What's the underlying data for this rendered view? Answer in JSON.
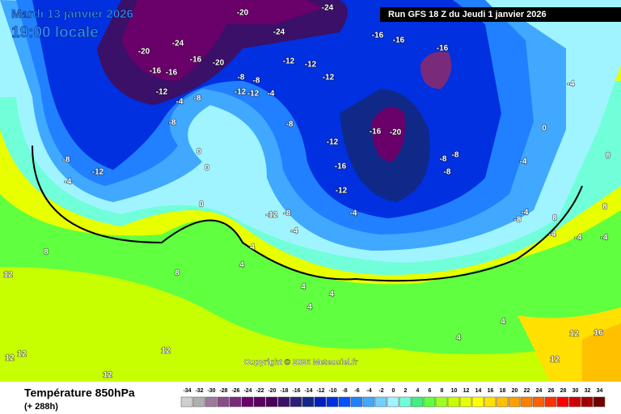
{
  "header": {
    "date": "Mardi 13 janvier 2026",
    "time": "19:00 locale",
    "run": "Run GFS 18 Z du Jeudi 1 janvier 2026"
  },
  "copyright": "Copyright © 2026 Meteociel.fr",
  "legend": {
    "title": "Température 850hPa",
    "lead": "(+ 288h)",
    "values": [
      -34,
      -32,
      -30,
      -28,
      -26,
      -24,
      -22,
      -20,
      -18,
      -16,
      -14,
      -12,
      -10,
      -8,
      -6,
      -4,
      -2,
      0,
      2,
      4,
      6,
      8,
      10,
      12,
      14,
      16,
      18,
      20,
      22,
      24,
      26,
      28,
      30,
      32,
      34
    ],
    "colors": [
      "#cfcfcf",
      "#b0b0b0",
      "#9c7a9c",
      "#8a4d8a",
      "#7a2a7a",
      "#6a006a",
      "#5a0060",
      "#4a0058",
      "#3a1068",
      "#2a2078",
      "#102888",
      "#0020c0",
      "#0030e0",
      "#0050ff",
      "#2080ff",
      "#40a8ff",
      "#70d0ff",
      "#a0f4ff",
      "#70ffd8",
      "#40f080",
      "#60ff40",
      "#a0ff20",
      "#c8ff00",
      "#e8ff00",
      "#ffff00",
      "#ffe000",
      "#ffc000",
      "#ffa000",
      "#ff8000",
      "#ff6000",
      "#ff3000",
      "#ff0000",
      "#d00000",
      "#a00000",
      "#700000"
    ]
  },
  "map_labels": [
    "-20",
    "-24",
    "-20",
    "-24",
    "-16",
    "-20",
    "-24",
    "-16",
    "-16",
    "-12",
    "-16",
    "-16",
    "-16",
    "-8",
    "-12",
    "-12",
    "-12",
    "-8",
    "-4",
    "-8",
    "-12",
    "-8",
    "-8",
    "-12",
    "-12",
    "-16",
    "-20",
    "-4",
    "-16",
    "-8",
    "-8",
    "-8",
    "-12",
    "-4",
    "-12",
    "-4",
    "0",
    "0",
    "0",
    "-8",
    "-4",
    "-8",
    "-4",
    "-4",
    "-8",
    "-4",
    "-4",
    "4",
    "4",
    "4",
    "4",
    "4",
    "8",
    "12",
    "12",
    "12",
    "12",
    "12",
    "8",
    "4",
    "4",
    "8",
    "12",
    "16",
    "12",
    "-4",
    "8",
    "8",
    "0",
    "-4",
    "-12"
  ]
}
